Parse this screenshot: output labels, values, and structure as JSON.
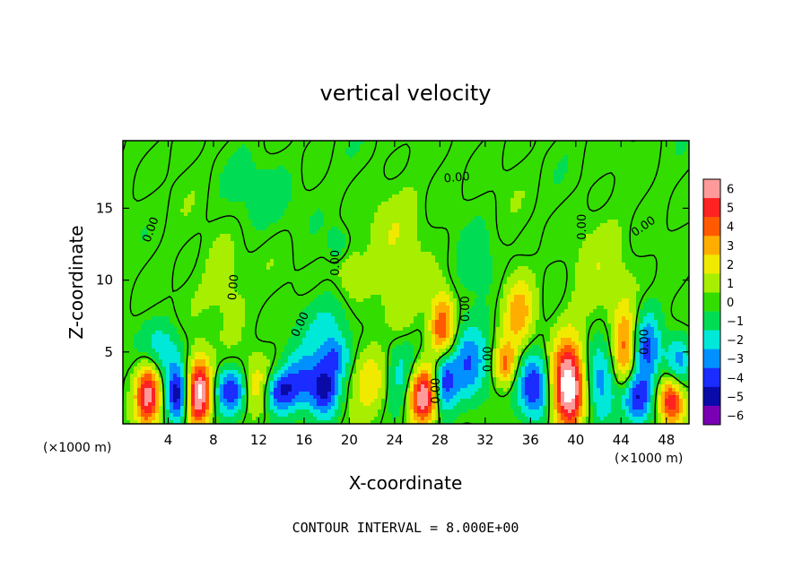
{
  "chart_data": {
    "type": "heatmap",
    "title": "vertical velocity",
    "xlabel": "X-coordinate",
    "ylabel": "Z-coordinate",
    "x_unit_left": "(×1000 m)",
    "x_unit_right": "(×1000 m)",
    "footer": "CONTOUR INTERVAL = 8.000E+00",
    "xlim": [
      0,
      50
    ],
    "ylim": [
      0,
      19.7
    ],
    "x_ticks": [
      4,
      8,
      12,
      16,
      20,
      24,
      28,
      32,
      36,
      40,
      44,
      48
    ],
    "y_ticks": [
      5,
      10,
      15
    ],
    "colorbar": {
      "levels": [
        6,
        5,
        4,
        3,
        2,
        1,
        0,
        -1,
        -2,
        -3,
        -4,
        -5,
        -6
      ],
      "colors": [
        "#ff9a9a",
        "#ff2222",
        "#ff5a00",
        "#ffae00",
        "#f0ea00",
        "#a8ee00",
        "#33dd00",
        "#00dd55",
        "#00e8d8",
        "#0090ff",
        "#1a2cff",
        "#0a0aa8",
        "#7a00b4"
      ]
    },
    "contour_labels": [
      {
        "text": "0.00",
        "x": 2.5,
        "y": 13.5,
        "angle": -70
      },
      {
        "text": "0.00",
        "x": 18.8,
        "y": 11.2,
        "angle": -90
      },
      {
        "text": "0.00",
        "x": 9.8,
        "y": 9.5,
        "angle": -85
      },
      {
        "text": "0.00",
        "x": 15.7,
        "y": 6.9,
        "angle": -65
      },
      {
        "text": "0.00",
        "x": 29.5,
        "y": 17.1,
        "angle": -5
      },
      {
        "text": "0.00",
        "x": 30.3,
        "y": 8.0,
        "angle": -90
      },
      {
        "text": "0.00",
        "x": 27.7,
        "y": 2.3,
        "angle": -90
      },
      {
        "text": "0.00",
        "x": 32.3,
        "y": 4.5,
        "angle": -90
      },
      {
        "text": "0.00",
        "x": 40.6,
        "y": 13.7,
        "angle": -90
      },
      {
        "text": "0.00",
        "x": 46.0,
        "y": 13.7,
        "angle": -35
      },
      {
        "text": "0.00",
        "x": 46.1,
        "y": 5.7,
        "angle": -90
      }
    ],
    "features": [
      {
        "x": 2.2,
        "z": 2.2,
        "w": 6,
        "sx": 0.8,
        "sz": 1.6
      },
      {
        "x": 3.4,
        "z": 5.0,
        "w": -2.5,
        "sx": 1.4,
        "sz": 1.5
      },
      {
        "x": 6.7,
        "z": 2.2,
        "w": 7.5,
        "sx": 0.8,
        "sz": 1.7
      },
      {
        "x": 4.8,
        "z": 2.0,
        "w": -5,
        "sx": 0.7,
        "sz": 1.4
      },
      {
        "x": 9.6,
        "z": 2.3,
        "w": -4.5,
        "sx": 1.0,
        "sz": 1.1
      },
      {
        "x": 11.8,
        "z": 2.6,
        "w": 2.5,
        "sx": 1.0,
        "sz": 1.3
      },
      {
        "x": 13.7,
        "z": 2.2,
        "w": -4,
        "sx": 1.0,
        "sz": 1.0
      },
      {
        "x": 15.6,
        "z": 3.0,
        "w": -3,
        "sx": 1.3,
        "sz": 1.5
      },
      {
        "x": 17.8,
        "z": 2.3,
        "w": -4.5,
        "sx": 0.9,
        "sz": 1.3
      },
      {
        "x": 18.8,
        "z": 4.6,
        "w": -3,
        "sx": 0.9,
        "sz": 1.0
      },
      {
        "x": 22.0,
        "z": 3.0,
        "w": 2.5,
        "sx": 1.4,
        "sz": 1.6
      },
      {
        "x": 24.4,
        "z": 3.5,
        "w": -2.5,
        "sx": 1.2,
        "sz": 1.8
      },
      {
        "x": 26.5,
        "z": 1.9,
        "w": 7,
        "sx": 0.9,
        "sz": 1.5
      },
      {
        "x": 28.2,
        "z": 6.6,
        "w": 5.5,
        "sx": 0.8,
        "sz": 1.8
      },
      {
        "x": 28.3,
        "z": 3.2,
        "w": -4.5,
        "sx": 0.7,
        "sz": 1.6
      },
      {
        "x": 30.5,
        "z": 4.0,
        "w": -3.5,
        "sx": 1.3,
        "sz": 2.0
      },
      {
        "x": 33.8,
        "z": 4.1,
        "w": 4,
        "sx": 0.7,
        "sz": 1.1
      },
      {
        "x": 35.0,
        "z": 7.8,
        "w": 3,
        "sx": 1.0,
        "sz": 2.0
      },
      {
        "x": 36.3,
        "z": 2.6,
        "w": -4.5,
        "sx": 1.0,
        "sz": 1.6
      },
      {
        "x": 39.3,
        "z": 2.6,
        "w": 8,
        "sx": 1.0,
        "sz": 2.1
      },
      {
        "x": 42.1,
        "z": 3.2,
        "w": -3.5,
        "sx": 0.9,
        "sz": 2.0
      },
      {
        "x": 44.3,
        "z": 5.0,
        "w": 4,
        "sx": 0.7,
        "sz": 2.2
      },
      {
        "x": 45.3,
        "z": 1.8,
        "w": -5,
        "sx": 1.0,
        "sz": 1.2
      },
      {
        "x": 46.4,
        "z": 5.2,
        "w": -3.5,
        "sx": 0.8,
        "sz": 1.8
      },
      {
        "x": 48.4,
        "z": 1.7,
        "w": 6,
        "sx": 0.8,
        "sz": 1.2
      },
      {
        "x": 49.0,
        "z": 4.3,
        "w": -3,
        "sx": 0.8,
        "sz": 1.5
      },
      {
        "x": 9.0,
        "z": 9.5,
        "w": 1.2,
        "sx": 1.5,
        "sz": 2.5
      },
      {
        "x": 19.0,
        "z": 12.5,
        "w": -1.5,
        "sx": 0.6,
        "sz": 0.8
      },
      {
        "x": 20.0,
        "z": 10.5,
        "w": 1.5,
        "sx": 1.0,
        "sz": 1.5
      },
      {
        "x": 24.5,
        "z": 8.2,
        "w": 1.2,
        "sx": 1.2,
        "sz": 1.5
      },
      {
        "x": 31.5,
        "z": 10.5,
        "w": -1.2,
        "sx": 1.5,
        "sz": 2.0
      },
      {
        "x": 18.0,
        "z": 7.0,
        "w": -1.5,
        "sx": 2.0,
        "sz": 1.5
      },
      {
        "x": 24.0,
        "z": 13.0,
        "w": 1.0,
        "sx": 2.0,
        "sz": 2.5
      },
      {
        "x": 13.0,
        "z": 16.0,
        "w": -0.8,
        "sx": 3.0,
        "sz": 2.0
      },
      {
        "x": 42.0,
        "z": 10.0,
        "w": 1.0,
        "sx": 2.0,
        "sz": 3.0
      }
    ]
  }
}
